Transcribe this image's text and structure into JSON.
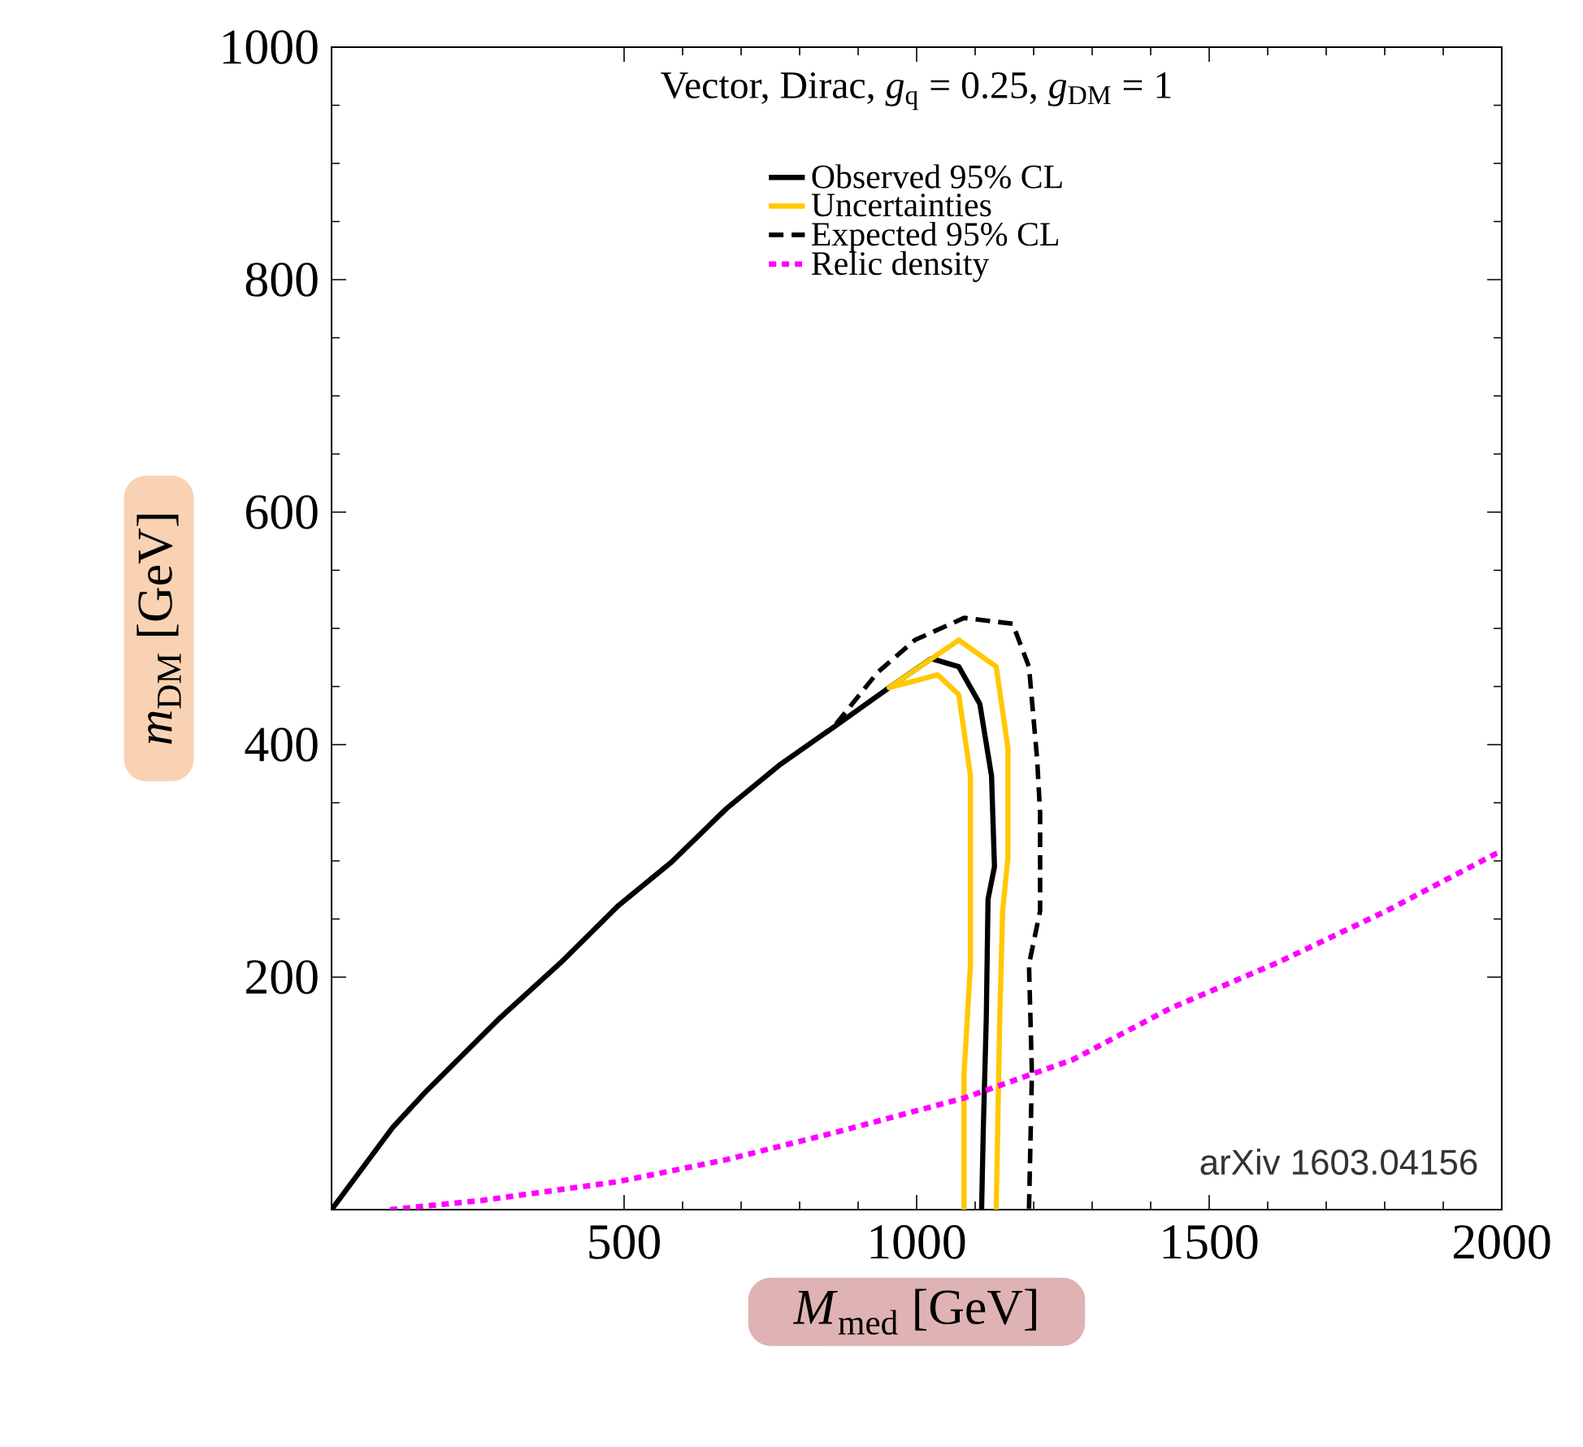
{
  "chart_data": {
    "type": "line",
    "title": "Vector, Dirac, *g*$_{q}$ = 0.25, *g*$_{DM}$ = 1",
    "xlabel": "*M*$_{med}$  [GeV]",
    "ylabel": "*m*$_{DM}$  [GeV]",
    "xlim": [
      0,
      2000
    ],
    "ylim": [
      0,
      1000
    ],
    "xticks": [
      500,
      1000,
      1500,
      2000
    ],
    "yticks": [
      200,
      400,
      600,
      800,
      1000
    ],
    "grid": false,
    "legend": "top",
    "series": [
      {
        "name": "Observed 95% CL",
        "color": "#000000",
        "line_style": "solid",
        "x": [
          0,
          105,
          164,
          286,
          397,
          489,
          581,
          675,
          767,
          858,
          953,
          1025,
          1072,
          1108,
          1128,
          1133,
          1122,
          1119,
          1114,
          1111
        ],
        "values": [
          0,
          71,
          103,
          164,
          215,
          261,
          299,
          345,
          383,
          415,
          449,
          474,
          467,
          435,
          373,
          295,
          267,
          164,
          71,
          0
        ]
      },
      {
        "name": "Uncertainties",
        "color": "#ffc800",
        "line_style": "solid",
        "x": [
          1081,
          1081,
          1092,
          1092,
          1072,
          1036,
          953,
          1072,
          1136,
          1156,
          1156,
          1147,
          1142,
          1136
        ],
        "values": [
          0,
          117,
          211,
          373,
          443,
          460,
          449,
          490,
          467,
          397,
          303,
          257,
          164,
          0
        ]
      },
      {
        "name": "Expected 95% CL",
        "color": "#000000",
        "line_style": "dashed",
        "x": [
          0,
          105,
          164,
          286,
          397,
          489,
          581,
          675,
          767,
          858,
          933,
          997,
          1081,
          1164,
          1192,
          1206,
          1211,
          1211,
          1192,
          1197,
          1192
        ],
        "values": [
          0,
          71,
          103,
          164,
          215,
          261,
          299,
          345,
          383,
          415,
          462,
          490,
          509,
          504,
          467,
          387,
          341,
          257,
          211,
          117,
          0
        ]
      },
      {
        "name": "Relic density",
        "color": "#ff00ff",
        "line_style": "dotted",
        "x": [
          100,
          258,
          489,
          675,
          858,
          1081,
          1267,
          1433,
          1619,
          1803,
          1989,
          2000
        ],
        "values": [
          0,
          8,
          24,
          43,
          66,
          96,
          129,
          173,
          213,
          257,
          306,
          308
        ]
      }
    ],
    "annotations": [
      "arXiv 1603.04156"
    ]
  }
}
